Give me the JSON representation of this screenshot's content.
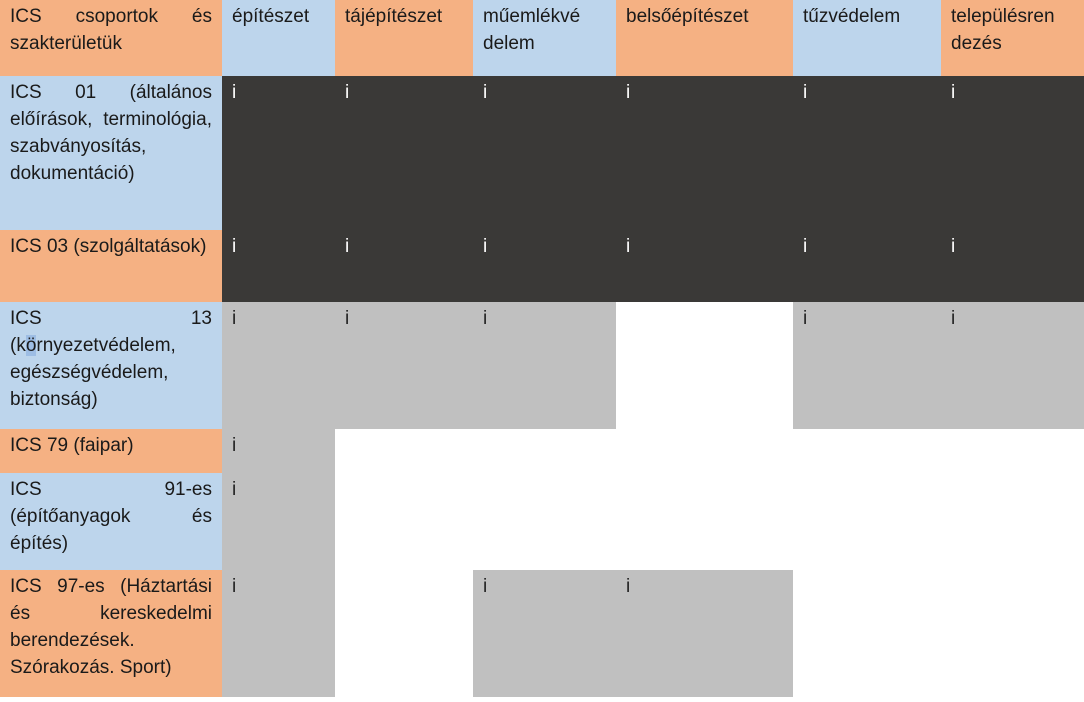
{
  "header": {
    "first": "ICS csoportok és szakterületük",
    "columns": [
      "építészet",
      "tájépítészet",
      "műemlékvédelem",
      "belsőépítészet",
      "tűzvédelem",
      "településrendezés"
    ]
  },
  "columns_display": [
    "építészet",
    "tájépítészet",
    "műemlékvé delem",
    "belsőépítészet",
    "tűzvédelem",
    "településren dezés"
  ],
  "marker": "i",
  "rows": [
    {
      "label": "ICS 01 (általános előírások, terminológia, szabványosítás, dokumentáció)",
      "cells": [
        "i",
        "i",
        "i",
        "i",
        "i",
        "i"
      ]
    },
    {
      "label": "ICS 03 (szolgáltatások)",
      "cells": [
        "i",
        "i",
        "i",
        "i",
        "i",
        "i"
      ]
    },
    {
      "label_pre": "ICS 13 (k",
      "label_hl": "ö",
      "label_post": "rnyezetvédelem, egészségvédelem, biztonság)",
      "cells": [
        "i",
        "i",
        "i",
        "",
        "i",
        "i"
      ]
    },
    {
      "label": "ICS 79 (faipar)",
      "cells": [
        "i",
        "",
        "",
        "",
        "",
        ""
      ]
    },
    {
      "label": "ICS 91-es (építőanyagok és építés)",
      "cells": [
        "i",
        "",
        "",
        "",
        "",
        ""
      ]
    },
    {
      "label": "ICS 97-es (Háztartási és kereskedelmi berendezések. Szórakozás. Sport)",
      "cells": [
        "i",
        "",
        "i",
        "i",
        "",
        ""
      ]
    }
  ]
}
